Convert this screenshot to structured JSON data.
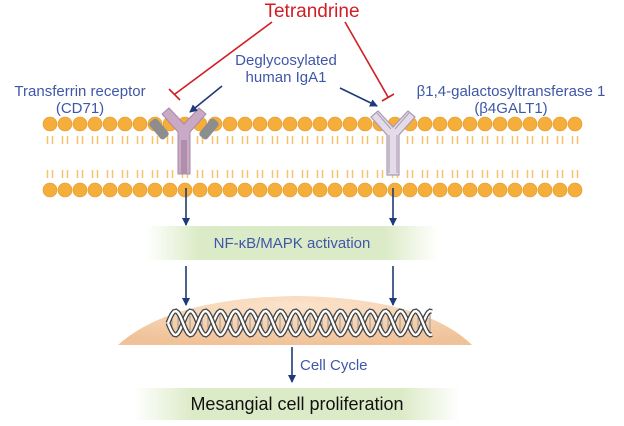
{
  "drug": "Tetrandrine",
  "ligand": {
    "line1": "Deglycosylated",
    "line2": "human IgA1"
  },
  "receptor_left": {
    "line1": "Transferrin receptor",
    "line2": "(CD71)"
  },
  "receptor_right": {
    "line1": "β1,4-galactosyltransferase 1",
    "line2": "(β4GALT1)"
  },
  "pathway": "NF-κB/MAPK activation",
  "process": "Cell Cycle",
  "outcome": "Mesangial cell proliferation",
  "colors": {
    "inhibition": "#d01e25",
    "label_blue": "#3f57a8",
    "arrow": "#1f3a7a",
    "lipid_head": "#f5ad3c",
    "lipid_tail": "#f7c26b",
    "receptor_left": "#c9a9c6",
    "receptor_right": "#e4dbe8",
    "nucleus": "#f3cda6",
    "pathway_bar": "#dcebc7"
  }
}
